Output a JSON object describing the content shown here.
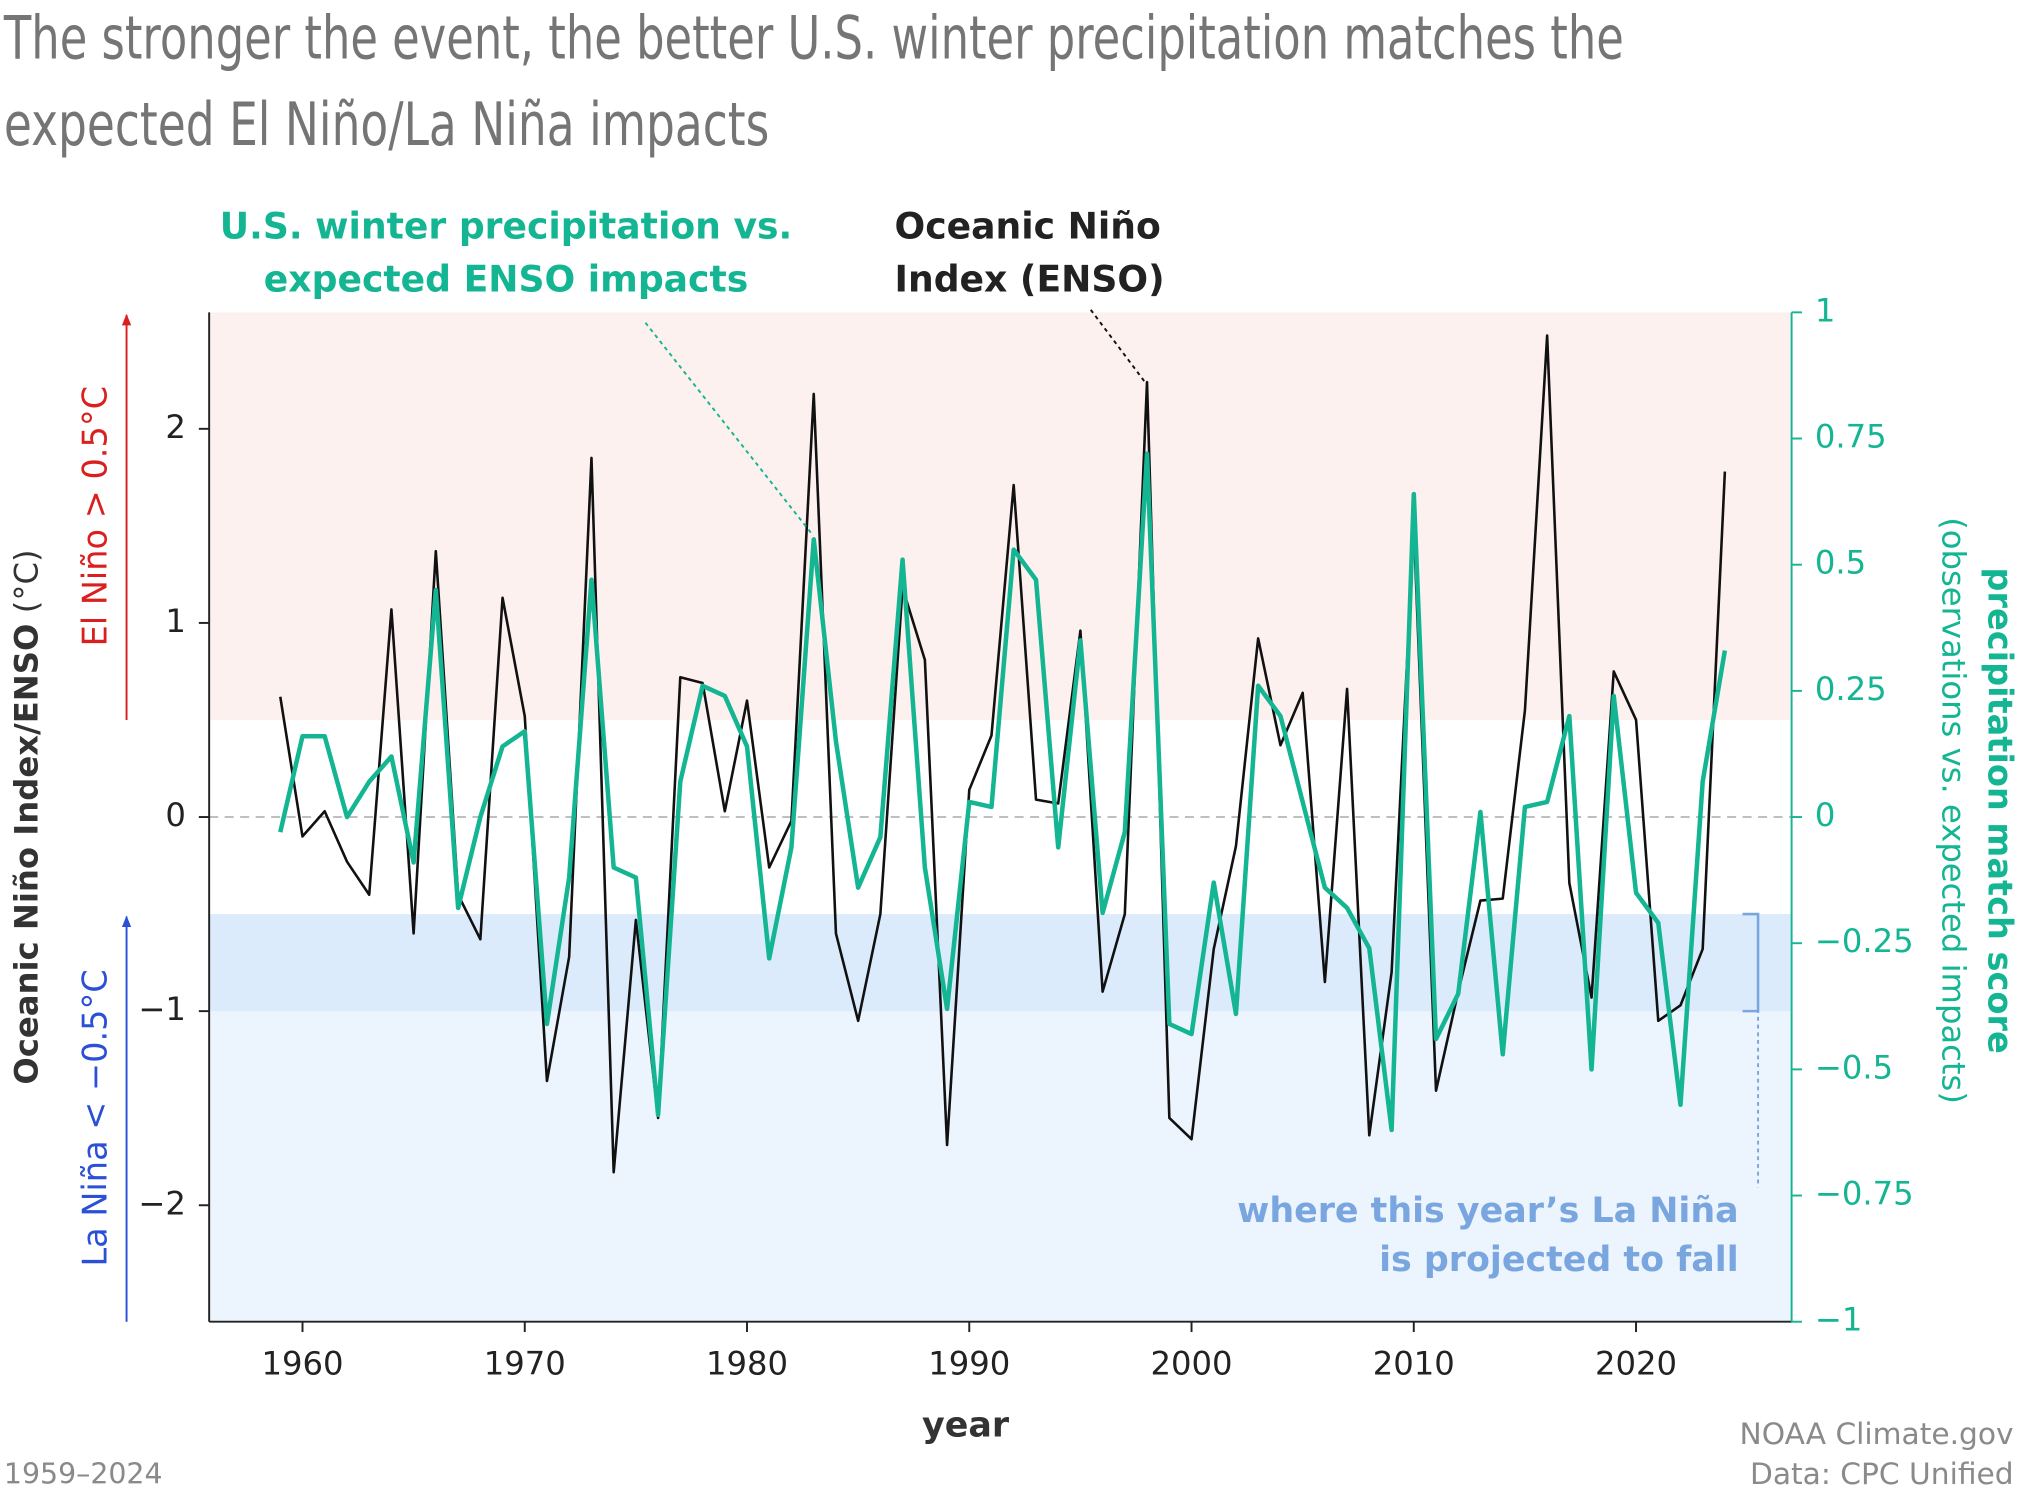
{
  "chart_data": {
    "type": "line",
    "title": [
      "The stronger the event, the better U.S. winter precipitation matches the",
      "expected El Niño/La Niña impacts"
    ],
    "x": [
      1959,
      1960,
      1961,
      1962,
      1963,
      1964,
      1965,
      1966,
      1967,
      1968,
      1969,
      1970,
      1971,
      1972,
      1973,
      1974,
      1975,
      1976,
      1977,
      1978,
      1979,
      1980,
      1981,
      1982,
      1983,
      1984,
      1985,
      1986,
      1987,
      1988,
      1989,
      1990,
      1991,
      1992,
      1993,
      1994,
      1995,
      1996,
      1997,
      1998,
      1999,
      2000,
      2001,
      2002,
      2003,
      2004,
      2005,
      2006,
      2007,
      2008,
      2009,
      2010,
      2011,
      2012,
      2013,
      2014,
      2015,
      2016,
      2017,
      2018,
      2019,
      2020,
      2021,
      2022,
      2023,
      2024
    ],
    "series": [
      {
        "name": [
          "Oceanic Niño",
          "Index (ENSO)"
        ],
        "color": "#111111",
        "axis": "y",
        "values": [
          0.62,
          -0.1,
          0.03,
          -0.23,
          -0.4,
          1.07,
          -0.6,
          1.37,
          -0.4,
          -0.63,
          1.13,
          0.52,
          -1.36,
          -0.72,
          1.85,
          -1.83,
          -0.53,
          -1.55,
          0.72,
          0.69,
          0.03,
          0.6,
          -0.26,
          -0.02,
          2.18,
          -0.6,
          -1.05,
          -0.5,
          1.18,
          0.81,
          -1.69,
          0.14,
          0.42,
          1.71,
          0.09,
          0.07,
          0.96,
          -0.9,
          -0.5,
          2.24,
          -1.55,
          -1.66,
          -0.68,
          -0.15,
          0.92,
          0.37,
          0.64,
          -0.85,
          0.66,
          -1.64,
          -0.8,
          1.5,
          -1.41,
          -0.9,
          -0.43,
          -0.42,
          0.55,
          2.48,
          -0.34,
          -0.93,
          0.75,
          0.5,
          -1.05,
          -0.97,
          -0.68,
          1.78
        ]
      },
      {
        "name": [
          "U.S. winter precipitation vs.",
          "expected ENSO impacts"
        ],
        "color": "#14b592",
        "axis": "y2",
        "values": [
          -0.03,
          0.16,
          0.16,
          0.0,
          0.07,
          0.12,
          -0.09,
          0.45,
          -0.18,
          0.0,
          0.14,
          0.17,
          -0.41,
          -0.12,
          0.47,
          -0.1,
          -0.12,
          -0.59,
          0.07,
          0.26,
          0.24,
          0.14,
          -0.28,
          -0.06,
          0.55,
          0.15,
          -0.14,
          -0.04,
          0.51,
          -0.1,
          -0.38,
          0.03,
          0.02,
          0.53,
          0.47,
          -0.06,
          0.35,
          -0.19,
          -0.03,
          0.72,
          -0.41,
          -0.43,
          -0.13,
          -0.39,
          0.26,
          0.2,
          0.03,
          -0.14,
          -0.18,
          -0.26,
          -0.62,
          0.64,
          -0.44,
          -0.35,
          0.01,
          -0.47,
          0.02,
          0.03,
          0.2,
          -0.5,
          0.24,
          -0.15,
          -0.21,
          -0.57,
          0.07,
          0.33
        ]
      }
    ],
    "xlim": [
      1955.8,
      2027
    ],
    "xticks": [
      1960,
      1970,
      1980,
      1990,
      2000,
      2010,
      2020
    ],
    "xlabel": "year",
    "ylim": [
      -2.6,
      2.6
    ],
    "yticks": [
      {
        "value": -2,
        "label": "−2"
      },
      {
        "value": -1,
        "label": "−1"
      },
      0,
      1,
      2
    ],
    "ylabel": "Oceanic Niño Index/ENSO",
    "ylabel_unit": "(°C)",
    "y2lim": [
      -1,
      1
    ],
    "y2ticks": [
      {
        "value": -1,
        "label": "−1"
      },
      {
        "value": -0.75,
        "label": "−0.75"
      },
      {
        "value": -0.5,
        "label": "−0.5"
      },
      {
        "value": -0.25,
        "label": "−0.25"
      },
      0,
      0.25,
      0.5,
      0.75,
      1
    ],
    "y2label": "precipitation match score",
    "y2label_sub": "(observations vs. expected impacts)",
    "regions": [
      {
        "label": "El Niño > 0.5°C",
        "from": 0.5,
        "to": 2.6,
        "color": "#fdf1ef",
        "text_color": "#d9201e"
      },
      {
        "label": "La Niña < −0.5°C",
        "from": -2.6,
        "to": -0.5,
        "color": "#ecf4fd",
        "text_color": "#2b4fd6"
      }
    ],
    "projection": {
      "label": [
        "where this year’s La Niña",
        "is projected to fall"
      ],
      "from": -1,
      "to": -0.5,
      "color": "#dcebfc",
      "text_color": "#7aa6e0"
    },
    "date_range": "1959–2024",
    "source": [
      "NOAA Climate.gov",
      "Data: CPC Unified"
    ]
  }
}
